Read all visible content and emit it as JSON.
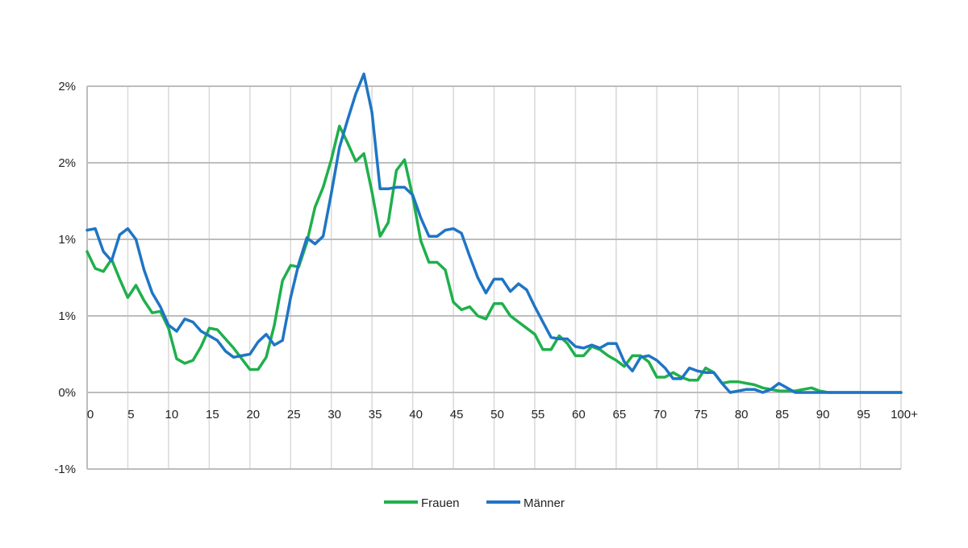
{
  "chart_data": {
    "type": "line",
    "title": "",
    "xlabel": "",
    "ylabel": "",
    "x": [
      0,
      1,
      2,
      3,
      4,
      5,
      6,
      7,
      8,
      9,
      10,
      11,
      12,
      13,
      14,
      15,
      16,
      17,
      18,
      19,
      20,
      21,
      22,
      23,
      24,
      25,
      26,
      27,
      28,
      29,
      30,
      31,
      32,
      33,
      34,
      35,
      36,
      37,
      38,
      39,
      40,
      41,
      42,
      43,
      44,
      45,
      46,
      47,
      48,
      49,
      50,
      51,
      52,
      53,
      54,
      55,
      56,
      57,
      58,
      59,
      60,
      61,
      62,
      63,
      64,
      65,
      66,
      67,
      68,
      69,
      70,
      71,
      72,
      73,
      74,
      75,
      76,
      77,
      78,
      79,
      80,
      81,
      82,
      83,
      84,
      85,
      86,
      87,
      88,
      89,
      90,
      91,
      92,
      93,
      94,
      95,
      96,
      97,
      98,
      99,
      100
    ],
    "x_tick_labels": [
      "0",
      "5",
      "10",
      "15",
      "20",
      "25",
      "30",
      "35",
      "40",
      "45",
      "50",
      "55",
      "60",
      "65",
      "70",
      "75",
      "80",
      "85",
      "90",
      "95",
      "100+"
    ],
    "x_tick_values": [
      0,
      5,
      10,
      15,
      20,
      25,
      30,
      35,
      40,
      45,
      50,
      55,
      60,
      65,
      70,
      75,
      80,
      85,
      90,
      95,
      100
    ],
    "y_tick_labels": [
      "-1%",
      "0%",
      "1%",
      "1%",
      "2%",
      "2%"
    ],
    "y_tick_values": [
      -0.5,
      0,
      0.5,
      1.0,
      1.5,
      2.0
    ],
    "ylim": [
      -0.5,
      2.0
    ],
    "xlim": [
      0,
      100
    ],
    "grid": true,
    "legend_position": "bottom",
    "series": [
      {
        "name": "Frauen",
        "color": "#1fb04b",
        "values": [
          0.92,
          0.81,
          0.79,
          0.87,
          0.74,
          0.62,
          0.7,
          0.6,
          0.52,
          0.53,
          0.42,
          0.22,
          0.19,
          0.21,
          0.3,
          0.42,
          0.41,
          0.35,
          0.29,
          0.22,
          0.15,
          0.15,
          0.23,
          0.44,
          0.73,
          0.83,
          0.82,
          0.98,
          1.21,
          1.34,
          1.52,
          1.74,
          1.63,
          1.51,
          1.56,
          1.31,
          1.02,
          1.11,
          1.45,
          1.52,
          1.28,
          0.99,
          0.85,
          0.85,
          0.8,
          0.59,
          0.54,
          0.56,
          0.5,
          0.48,
          0.58,
          0.58,
          0.5,
          0.46,
          0.42,
          0.38,
          0.28,
          0.28,
          0.37,
          0.32,
          0.24,
          0.24,
          0.3,
          0.28,
          0.24,
          0.21,
          0.17,
          0.24,
          0.24,
          0.2,
          0.1,
          0.1,
          0.13,
          0.1,
          0.08,
          0.08,
          0.16,
          0.13,
          0.06,
          0.07,
          0.07,
          0.06,
          0.05,
          0.03,
          0.02,
          0.01,
          0.01,
          0.01,
          0.02,
          0.03,
          0.01,
          0.0,
          0.0,
          0.0,
          0.0,
          0.0,
          0.0,
          0.0,
          0.0,
          0.0,
          0.0
        ]
      },
      {
        "name": "Männer",
        "color": "#1f75c4",
        "values": [
          1.06,
          1.07,
          0.92,
          0.86,
          1.03,
          1.07,
          1.0,
          0.8,
          0.65,
          0.56,
          0.44,
          0.4,
          0.48,
          0.46,
          0.4,
          0.37,
          0.34,
          0.27,
          0.23,
          0.24,
          0.25,
          0.33,
          0.38,
          0.31,
          0.34,
          0.62,
          0.84,
          1.01,
          0.97,
          1.02,
          1.3,
          1.6,
          1.78,
          1.95,
          2.08,
          1.83,
          1.33,
          1.33,
          1.34,
          1.34,
          1.29,
          1.14,
          1.02,
          1.02,
          1.06,
          1.07,
          1.04,
          0.89,
          0.75,
          0.65,
          0.74,
          0.74,
          0.66,
          0.71,
          0.67,
          0.56,
          0.46,
          0.36,
          0.35,
          0.35,
          0.3,
          0.29,
          0.31,
          0.29,
          0.32,
          0.32,
          0.2,
          0.14,
          0.23,
          0.24,
          0.21,
          0.16,
          0.09,
          0.09,
          0.16,
          0.14,
          0.13,
          0.13,
          0.06,
          0.0,
          0.01,
          0.02,
          0.02,
          0.0,
          0.02,
          0.06,
          0.03,
          0.0,
          0.0,
          0.0,
          0.0,
          0.0,
          0.0,
          0.0,
          0.0,
          0.0,
          0.0,
          0.0,
          0.0,
          0.0,
          0.0
        ]
      }
    ]
  }
}
